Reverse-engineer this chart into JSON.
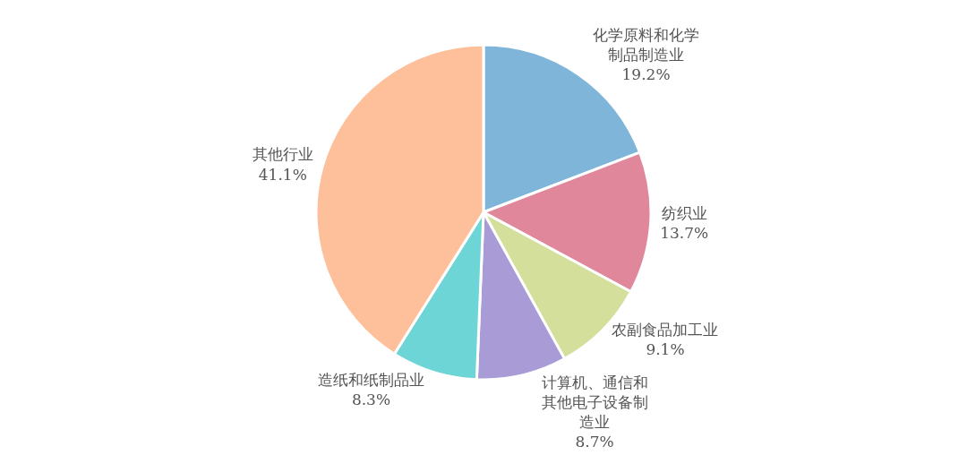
{
  "chart_data": {
    "type": "pie",
    "categories": [
      "化学原料和化学制品制造业",
      "纺织业",
      "农副食品加工业",
      "计算机、通信和其他电子设备制造业",
      "造纸和纸制品业",
      "其他行业"
    ],
    "values": [
      19.2,
      13.7,
      9.1,
      8.7,
      8.3,
      41.1
    ],
    "value_labels": [
      "19.2%",
      "13.7%",
      "9.1%",
      "8.7%",
      "8.3%",
      "41.1%"
    ],
    "colors": [
      "#80b5da",
      "#e0879c",
      "#d4df9c",
      "#a99cd6",
      "#6ed5d6",
      "#fdc09a"
    ],
    "legend": false
  }
}
